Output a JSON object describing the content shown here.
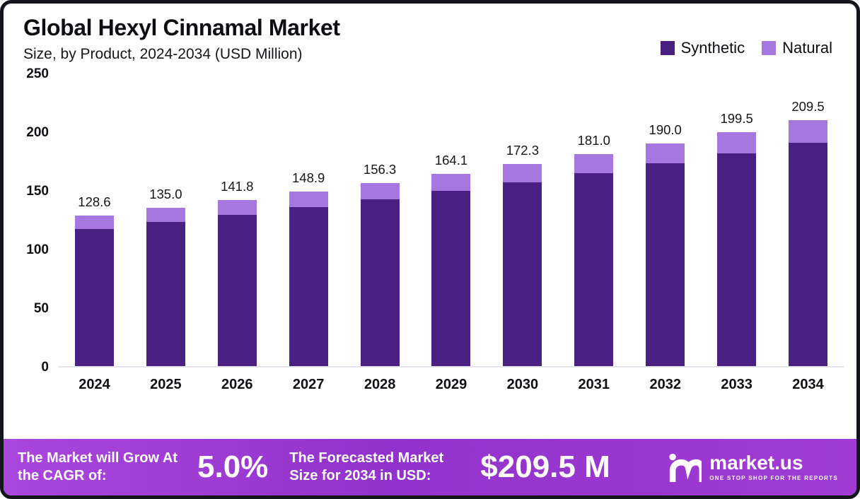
{
  "header": {
    "title": "Global Hexyl Cinnamal Market",
    "subtitle": "Size, by Product, 2024-2034 (USD Million)"
  },
  "chart_data": {
    "type": "bar",
    "stacked": true,
    "unit": "USD Million",
    "title": "Global Hexyl Cinnamal Market Size, by Product, 2024-2034 (USD Million)",
    "categories": [
      "2024",
      "2025",
      "2026",
      "2027",
      "2028",
      "2029",
      "2030",
      "2031",
      "2032",
      "2033",
      "2034"
    ],
    "series": [
      {
        "name": "Synthetic",
        "color": "#4a2182",
        "values": [
          117.0,
          122.9,
          129.0,
          135.5,
          142.2,
          149.3,
          156.8,
          164.7,
          172.9,
          181.5,
          190.6
        ]
      },
      {
        "name": "Natural",
        "color": "#a678df",
        "values": [
          11.6,
          12.1,
          12.8,
          13.4,
          14.1,
          14.8,
          15.5,
          16.3,
          17.1,
          18.0,
          18.9
        ]
      }
    ],
    "totals": [
      128.6,
      135.0,
      141.8,
      148.9,
      156.3,
      164.1,
      172.3,
      181.0,
      190.0,
      199.5,
      209.5
    ],
    "total_labels": [
      "128.6",
      "135.0",
      "141.8",
      "148.9",
      "156.3",
      "164.1",
      "172.3",
      "181.0",
      "190.0",
      "199.5",
      "209.5"
    ],
    "ylim": [
      0,
      250
    ],
    "yticks": [
      0,
      50,
      100,
      150,
      200,
      250
    ],
    "grid": false,
    "legend_position": "top-right"
  },
  "banner": {
    "cagr_label": "The Market will Grow At the CAGR of:",
    "cagr_value": "5.0%",
    "forecast_label": "The Forecasted Market Size for 2034 in USD:",
    "forecast_value": "$209.5 M",
    "brand": "market.us",
    "tagline": "ONE STOP SHOP FOR THE REPORTS"
  },
  "colors": {
    "synthetic": "#4a2182",
    "natural": "#a678df",
    "banner_gradient_start": "#aa46dc",
    "banner_gradient_end": "#a13bd4",
    "frame_border": "#14141c"
  }
}
